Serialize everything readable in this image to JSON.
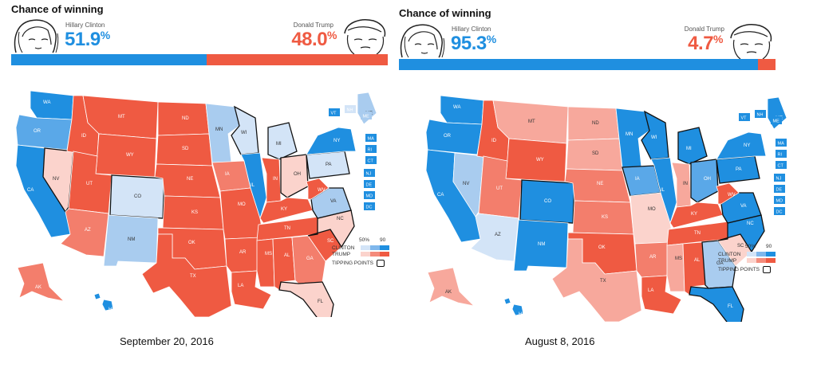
{
  "left": {
    "headline": "Chance of winning",
    "clinton": {
      "name": "Hillary Clinton",
      "pct": "51.9",
      "value": 51.9
    },
    "trump": {
      "name": "Donald Trump",
      "pct": "48.0",
      "value": 48.0
    },
    "caption": "September 20, 2016",
    "legend": {
      "scale_low": "50%",
      "scale_high": "90",
      "clinton": "CLINTON",
      "trump": "TRUMP",
      "tipping": "TIPPING POINTS"
    }
  },
  "right": {
    "headline": "Chance of winning",
    "clinton": {
      "name": "Hillary Clinton",
      "pct": "95.3",
      "value": 95.3
    },
    "trump": {
      "name": "Donald Trump",
      "pct": "4.7",
      "value": 4.7
    },
    "caption": "August 8, 2016",
    "legend": {
      "scale_low": "50%",
      "scale_high": "90",
      "clinton": "CLINTON",
      "trump": "TRUMP",
      "tipping": "TIPPING POINTS"
    }
  },
  "percent_symbol": "%",
  "colors": {
    "clinton_strong": "#1f8fe0",
    "clinton_mid": "#5aa8e8",
    "clinton_light": "#a9ccef",
    "clinton_faint": "#d3e4f7",
    "trump_strong": "#ef5a42",
    "trump_mid": "#f37e6c",
    "trump_light": "#f7a89c",
    "trump_faint": "#fbd3cc",
    "neutral": "#f4ecec"
  },
  "small_state_boxes": [
    "VT",
    "NH",
    "ME",
    "MA",
    "RI",
    "CT",
    "NJ",
    "DE",
    "MD",
    "DC"
  ],
  "left_states": {
    "WA": "clinton_strong",
    "OR": "clinton_mid",
    "CA": "clinton_strong",
    "NV": "trump_faint",
    "ID": "trump_strong",
    "MT": "trump_strong",
    "WY": "trump_strong",
    "UT": "trump_strong",
    "AZ": "trump_mid",
    "CO": "clinton_faint",
    "NM": "clinton_light",
    "ND": "trump_strong",
    "SD": "trump_strong",
    "NE": "trump_strong",
    "KS": "trump_strong",
    "OK": "trump_strong",
    "TX": "trump_strong",
    "MN": "clinton_light",
    "IA": "trump_mid",
    "MO": "trump_strong",
    "AR": "trump_strong",
    "LA": "trump_strong",
    "WI": "clinton_faint",
    "IL": "clinton_strong",
    "MI": "clinton_faint",
    "IN": "trump_strong",
    "OH": "trump_faint",
    "KY": "trump_strong",
    "TN": "trump_strong",
    "MS": "trump_strong",
    "AL": "trump_strong",
    "GA": "trump_mid",
    "FL": "trump_faint",
    "SC": "trump_strong",
    "NC": "trump_faint",
    "VA": "clinton_light",
    "WV": "trump_strong",
    "PA": "clinton_faint",
    "NY": "clinton_strong",
    "AK": "trump_mid",
    "HI": "clinton_strong",
    "ME": "clinton_light",
    "VT": "clinton_strong",
    "NH": "clinton_faint",
    "MA": "clinton_strong",
    "RI": "clinton_strong",
    "CT": "clinton_strong",
    "NJ": "clinton_strong",
    "DE": "clinton_strong",
    "MD": "clinton_strong",
    "DC": "clinton_strong"
  },
  "right_states": {
    "WA": "clinton_strong",
    "OR": "clinton_strong",
    "CA": "clinton_strong",
    "NV": "clinton_light",
    "ID": "trump_strong",
    "MT": "trump_light",
    "WY": "trump_strong",
    "UT": "trump_mid",
    "AZ": "clinton_faint",
    "CO": "clinton_strong",
    "NM": "clinton_strong",
    "ND": "trump_light",
    "SD": "trump_light",
    "NE": "trump_mid",
    "KS": "trump_mid",
    "OK": "trump_strong",
    "TX": "trump_light",
    "MN": "clinton_strong",
    "IA": "clinton_mid",
    "MO": "trump_faint",
    "AR": "trump_mid",
    "LA": "trump_strong",
    "WI": "clinton_strong",
    "IL": "clinton_strong",
    "MI": "clinton_strong",
    "IN": "trump_light",
    "OH": "clinton_mid",
    "KY": "trump_strong",
    "TN": "trump_strong",
    "MS": "trump_light",
    "AL": "trump_strong",
    "GA": "clinton_light",
    "FL": "clinton_strong",
    "SC": "trump_faint",
    "NC": "clinton_strong",
    "VA": "clinton_strong",
    "WV": "trump_strong",
    "PA": "clinton_strong",
    "NY": "clinton_strong",
    "AK": "trump_light",
    "HI": "clinton_strong",
    "ME": "clinton_strong",
    "VT": "clinton_strong",
    "NH": "clinton_strong",
    "MA": "clinton_strong",
    "RI": "clinton_strong",
    "CT": "clinton_strong",
    "NJ": "clinton_strong",
    "DE": "clinton_strong",
    "MD": "clinton_strong",
    "DC": "clinton_strong"
  }
}
